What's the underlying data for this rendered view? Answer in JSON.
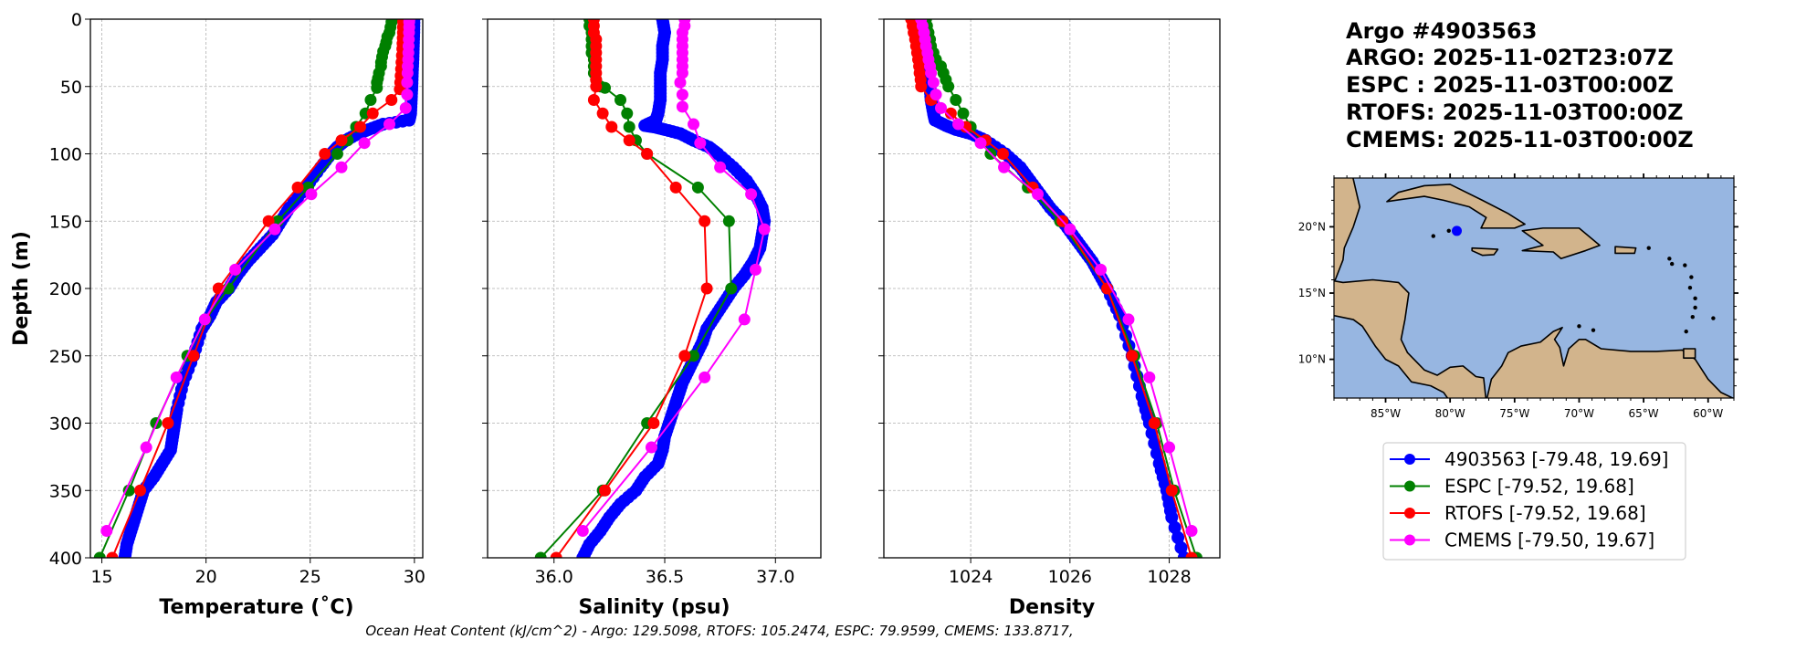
{
  "title_block": {
    "lines": [
      "Argo #4903563",
      "ARGO: 2025-11-02T23:07Z",
      "ESPC : 2025-11-03T00:00Z",
      "RTOFS: 2025-11-03T00:00Z",
      "CMEMS: 2025-11-03T00:00Z"
    ]
  },
  "footnote": "Ocean Heat Content (kJ/cm^2) - Argo: 129.5098,  RTOFS: 105.2474,  ESPC: 79.9599,  CMEMS: 133.8717,",
  "colors": {
    "argo": "#0000ff",
    "espc": "#008000",
    "rtofs": "#ff0000",
    "cmems": "#ff00ff",
    "ocean": "#97b6e1",
    "land": "#d2b48c"
  },
  "legend": {
    "entries": [
      {
        "key": "argo",
        "label": "4903563 [-79.48, 19.69]"
      },
      {
        "key": "espc",
        "label": "ESPC [-79.52, 19.68]"
      },
      {
        "key": "rtofs",
        "label": "RTOFS [-79.52, 19.68]"
      },
      {
        "key": "cmems",
        "label": "CMEMS [-79.50, 19.67]"
      }
    ]
  },
  "chart_data": [
    {
      "type": "line",
      "id": "temperature",
      "xlabel": "Temperature (˚C)",
      "ylabel": "Depth (m)",
      "xlim": [
        14.45,
        30.4
      ],
      "ylim": [
        400,
        0
      ],
      "xticks": [
        15,
        20,
        25,
        30
      ],
      "xtick_labels": [
        "15",
        "20",
        "25",
        "30"
      ],
      "yticks": [
        0,
        50,
        100,
        150,
        200,
        250,
        300,
        350,
        400
      ],
      "ytick_labels": [
        "0",
        "50",
        "100",
        "150",
        "200",
        "250",
        "300",
        "350",
        "400"
      ],
      "grid": true,
      "series": [
        {
          "key": "argo",
          "depth": [
            0,
            10,
            20,
            30,
            40,
            50,
            60,
            70,
            75,
            78,
            82,
            85,
            90,
            95,
            100,
            110,
            125,
            140,
            150,
            160,
            170,
            180,
            190,
            200,
            210,
            220,
            230,
            250,
            270,
            290,
            300,
            310,
            320,
            330,
            340,
            350,
            360,
            370,
            380,
            390,
            400
          ],
          "values": [
            29.98,
            29.97,
            29.95,
            29.93,
            29.9,
            29.88,
            29.85,
            29.82,
            29.75,
            28.5,
            27.8,
            27.3,
            26.7,
            26.3,
            26.0,
            25.5,
            24.8,
            24.0,
            23.6,
            23.2,
            22.6,
            22.0,
            21.5,
            21.1,
            20.5,
            20.2,
            19.8,
            19.4,
            18.9,
            18.6,
            18.5,
            18.4,
            18.3,
            17.9,
            17.5,
            17.0,
            16.8,
            16.6,
            16.4,
            16.2,
            16.1
          ]
        },
        {
          "key": "espc",
          "depth": [
            0,
            2,
            6,
            10,
            13,
            17,
            20,
            24,
            28,
            32,
            35,
            40,
            44,
            47,
            51,
            60,
            70,
            80,
            90,
            100,
            125,
            150,
            200,
            223,
            250,
            300,
            350,
            400
          ],
          "values": [
            28.95,
            28.9,
            28.85,
            28.8,
            28.7,
            28.65,
            28.6,
            28.5,
            28.45,
            28.4,
            28.4,
            28.3,
            28.25,
            28.2,
            28.2,
            27.9,
            27.65,
            27.2,
            26.8,
            26.3,
            24.9,
            23.45,
            21.07,
            19.98,
            19.1,
            17.6,
            16.3,
            14.9
          ]
        },
        {
          "key": "rtofs",
          "depth": [
            0,
            2,
            6,
            10,
            14,
            18,
            22,
            27,
            32,
            37,
            42,
            47,
            52,
            60,
            70,
            80,
            90,
            100,
            125,
            150,
            200,
            250,
            300,
            350,
            400
          ],
          "values": [
            29.47,
            29.46,
            29.45,
            29.45,
            29.44,
            29.43,
            29.42,
            29.4,
            29.38,
            29.36,
            29.34,
            29.32,
            29.3,
            28.9,
            28.0,
            27.4,
            26.5,
            25.7,
            24.4,
            23.0,
            20.6,
            19.4,
            18.17,
            16.84,
            15.5
          ]
        },
        {
          "key": "cmems",
          "depth": [
            0,
            2,
            6,
            10,
            15,
            20,
            25,
            30,
            35,
            40,
            47,
            56,
            66,
            78,
            92,
            110,
            130,
            156,
            186,
            223,
            266,
            318,
            380
          ],
          "values": [
            29.76,
            29.75,
            29.75,
            29.74,
            29.73,
            29.72,
            29.71,
            29.7,
            29.68,
            29.67,
            29.65,
            29.65,
            29.58,
            28.8,
            27.6,
            26.5,
            25.05,
            23.3,
            21.4,
            19.94,
            18.58,
            17.13,
            15.23
          ]
        }
      ]
    },
    {
      "type": "line",
      "id": "salinity",
      "xlabel": "Salinity (psu)",
      "xlim": [
        35.7,
        37.205
      ],
      "ylim": [
        400,
        0
      ],
      "xticks": [
        36.0,
        36.5,
        37.0
      ],
      "xtick_labels": [
        "36.0",
        "36.5",
        "37.0"
      ],
      "yticks": [
        0,
        50,
        100,
        150,
        200,
        250,
        300,
        350,
        400
      ],
      "grid": true,
      "series": [
        {
          "key": "argo",
          "depth": [
            0,
            10,
            20,
            30,
            40,
            50,
            60,
            70,
            75,
            79,
            80,
            82,
            85,
            90,
            95,
            100,
            110,
            120,
            130,
            140,
            150,
            160,
            170,
            180,
            190,
            200,
            210,
            220,
            230,
            240,
            250,
            260,
            270,
            280,
            290,
            300,
            310,
            320,
            330,
            340,
            350,
            360,
            370,
            380,
            390,
            400
          ],
          "values": [
            36.49,
            36.5,
            36.49,
            36.49,
            36.48,
            36.48,
            36.48,
            36.47,
            36.46,
            36.41,
            36.45,
            36.5,
            36.57,
            36.63,
            36.7,
            36.74,
            36.81,
            36.87,
            36.91,
            36.94,
            36.95,
            36.94,
            36.93,
            36.9,
            36.86,
            36.81,
            36.77,
            36.73,
            36.69,
            36.67,
            36.64,
            36.61,
            36.58,
            36.56,
            36.54,
            36.52,
            36.5,
            36.49,
            36.47,
            36.41,
            36.37,
            36.3,
            36.25,
            36.21,
            36.16,
            36.13
          ]
        },
        {
          "key": "espc",
          "depth": [
            0,
            5,
            10,
            15,
            20,
            25,
            30,
            35,
            40,
            45,
            50,
            51,
            60,
            70,
            80,
            90,
            100,
            125,
            150,
            200,
            250,
            300,
            350,
            400
          ],
          "values": [
            36.16,
            36.16,
            36.17,
            36.17,
            36.17,
            36.17,
            36.18,
            36.18,
            36.18,
            36.19,
            36.21,
            36.23,
            36.3,
            36.33,
            36.34,
            36.37,
            36.42,
            36.65,
            36.79,
            36.8,
            36.63,
            36.42,
            36.22,
            35.94
          ]
        },
        {
          "key": "rtofs",
          "depth": [
            0,
            5,
            10,
            15,
            20,
            25,
            30,
            35,
            40,
            45,
            50,
            60,
            70,
            80,
            90,
            100,
            125,
            150,
            200,
            250,
            300,
            350,
            400
          ],
          "values": [
            36.18,
            36.18,
            36.18,
            36.19,
            36.19,
            36.19,
            36.19,
            36.19,
            36.19,
            36.19,
            36.19,
            36.18,
            36.22,
            36.26,
            36.34,
            36.42,
            36.55,
            36.68,
            36.69,
            36.59,
            36.45,
            36.23,
            36.01
          ]
        },
        {
          "key": "cmems",
          "depth": [
            0,
            5,
            10,
            15,
            20,
            25,
            30,
            35,
            40,
            47,
            56,
            65,
            78,
            92,
            110,
            130,
            156,
            186,
            223,
            266,
            318,
            380
          ],
          "values": [
            36.59,
            36.59,
            36.58,
            36.58,
            36.58,
            36.58,
            36.58,
            36.58,
            36.58,
            36.57,
            36.58,
            36.58,
            36.63,
            36.66,
            36.75,
            36.89,
            36.95,
            36.91,
            36.86,
            36.68,
            36.44,
            36.13
          ]
        }
      ]
    },
    {
      "type": "line",
      "id": "density",
      "xlabel": "Density",
      "xlim": [
        1022.25,
        1029.02
      ],
      "ylim": [
        400,
        0
      ],
      "xticks": [
        1024,
        1026,
        1028
      ],
      "xtick_labels": [
        "1024",
        "1026",
        "1028"
      ],
      "yticks": [
        0,
        50,
        100,
        150,
        200,
        250,
        300,
        350,
        400
      ],
      "grid": true,
      "series": [
        {
          "key": "argo",
          "depth": [
            0,
            10,
            20,
            30,
            40,
            50,
            60,
            70,
            75,
            79,
            82,
            85,
            90,
            100,
            110,
            120,
            130,
            140,
            150,
            160,
            170,
            180,
            190,
            200,
            220,
            250,
            280,
            300,
            330,
            350,
            370,
            400
          ],
          "values": [
            1022.98,
            1023.0,
            1023.05,
            1023.1,
            1023.15,
            1023.18,
            1023.2,
            1023.25,
            1023.28,
            1023.5,
            1023.7,
            1024.0,
            1024.3,
            1024.7,
            1025.0,
            1025.2,
            1025.4,
            1025.6,
            1025.85,
            1026.05,
            1026.25,
            1026.45,
            1026.6,
            1026.75,
            1027.0,
            1027.25,
            1027.45,
            1027.6,
            1027.8,
            1027.95,
            1028.05,
            1028.3
          ]
        },
        {
          "key": "espc",
          "depth": [
            0,
            5,
            10,
            15,
            20,
            25,
            30,
            35,
            40,
            45,
            50,
            60,
            70,
            80,
            100,
            125,
            150,
            200,
            250,
            300,
            350,
            400
          ],
          "values": [
            1023.1,
            1023.12,
            1023.15,
            1023.18,
            1023.2,
            1023.25,
            1023.3,
            1023.4,
            1023.45,
            1023.5,
            1023.55,
            1023.7,
            1023.85,
            1024.0,
            1024.4,
            1025.15,
            1025.8,
            1026.75,
            1027.3,
            1027.75,
            1028.1,
            1028.55
          ]
        },
        {
          "key": "rtofs",
          "depth": [
            0,
            5,
            10,
            15,
            20,
            25,
            30,
            35,
            40,
            45,
            50,
            60,
            70,
            80,
            90,
            100,
            125,
            150,
            200,
            250,
            300,
            350,
            400
          ],
          "values": [
            1022.8,
            1022.83,
            1022.85,
            1022.88,
            1022.9,
            1022.92,
            1022.94,
            1022.96,
            1022.97,
            1022.99,
            1023.0,
            1023.2,
            1023.6,
            1023.9,
            1024.3,
            1024.65,
            1025.25,
            1025.85,
            1026.75,
            1027.25,
            1027.7,
            1028.05,
            1028.45
          ]
        },
        {
          "key": "cmems",
          "depth": [
            0,
            5,
            10,
            15,
            20,
            25,
            30,
            35,
            40,
            47,
            56,
            66,
            78,
            92,
            110,
            130,
            156,
            186,
            223,
            266,
            318,
            380
          ],
          "values": [
            1023.0,
            1023.03,
            1023.06,
            1023.08,
            1023.1,
            1023.13,
            1023.15,
            1023.18,
            1023.2,
            1023.25,
            1023.3,
            1023.4,
            1023.75,
            1024.2,
            1024.67,
            1025.35,
            1026.0,
            1026.62,
            1027.18,
            1027.6,
            1028.0,
            1028.45
          ]
        }
      ]
    }
  ],
  "map": {
    "lon_range": [
      -89.0,
      -58.0
    ],
    "lat_range": [
      7.08,
      23.68
    ],
    "lon_ticks": [
      -85,
      -80,
      -75,
      -70,
      -65,
      -60
    ],
    "lon_tick_labels": [
      "85°W",
      "80°W",
      "75°W",
      "70°W",
      "65°W",
      "60°W"
    ],
    "lat_ticks": [
      10,
      15,
      20
    ],
    "lat_tick_labels": [
      "10°N",
      "15°N",
      "20°N"
    ],
    "float_position": {
      "lon": -79.48,
      "lat": 19.69
    }
  }
}
